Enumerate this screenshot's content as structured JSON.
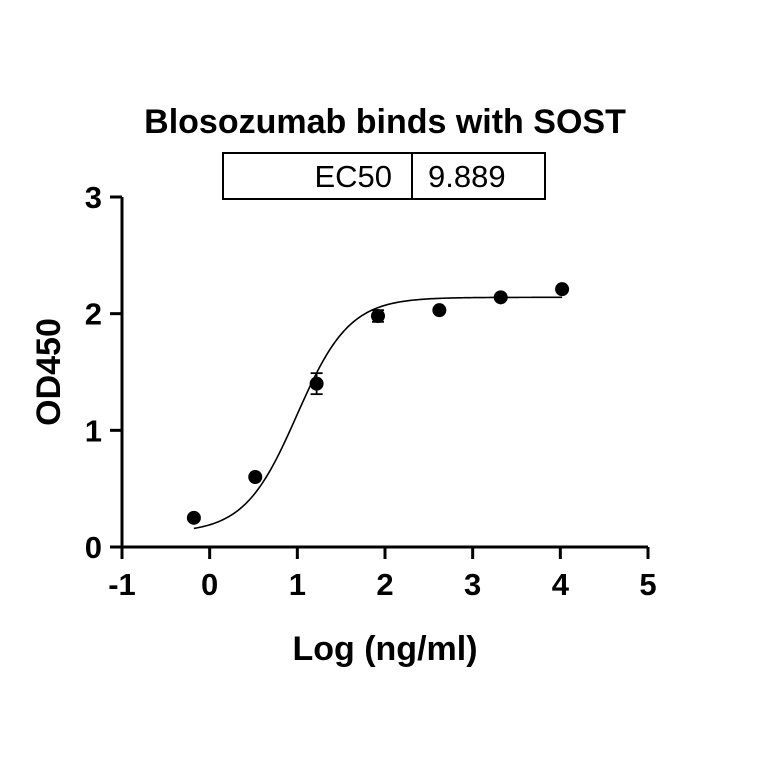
{
  "chart_data": {
    "type": "scatter",
    "title": "Blosozumab binds with SOST",
    "xlabel": "Log (ng/ml)",
    "ylabel": "OD450",
    "xlim": [
      -1,
      5
    ],
    "ylim": [
      0,
      3
    ],
    "xticks": [
      "-1",
      "0",
      "1",
      "2",
      "3",
      "4",
      "5"
    ],
    "yticks": [
      "0",
      "1",
      "2",
      "3"
    ],
    "grid": false,
    "series": [
      {
        "x": [
          -0.18,
          0.52,
          1.22,
          1.92,
          2.62,
          3.32,
          4.02
        ],
        "y": [
          0.25,
          0.6,
          1.4,
          1.98,
          2.03,
          2.14,
          2.21
        ],
        "error": [
          0,
          0,
          0.09,
          0.05,
          0,
          0,
          0
        ]
      }
    ],
    "fit": {
      "type": "4PL",
      "bottom": 0.12,
      "top": 2.14,
      "logEC50": 0.995,
      "hill": 1.45,
      "x_range": [
        -0.18,
        4.02
      ]
    },
    "ec50_table": {
      "label": "EC50",
      "value": "9.889"
    }
  },
  "colors": {
    "ink": "#000000",
    "background": "#ffffff"
  }
}
